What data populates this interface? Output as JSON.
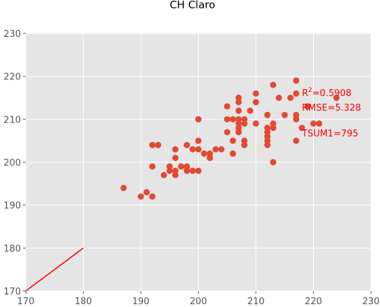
{
  "chart_data": {
    "type": "scatter",
    "title": "CH Claro",
    "xlabel": "",
    "ylabel": "",
    "xlim": [
      170,
      230
    ],
    "ylim": [
      170,
      230
    ],
    "grid": true,
    "xticks": [
      170,
      180,
      190,
      200,
      210,
      220,
      230
    ],
    "yticks": [
      170,
      180,
      190,
      200,
      210,
      220,
      230
    ],
    "colors": {
      "background": "#e5e5e5",
      "grid": "#ffffff",
      "points": "#e24a33",
      "line": "#ff0000",
      "annotation": "#ff0000"
    },
    "series": [
      {
        "points": [
          [
            187,
            194
          ],
          [
            190,
            192
          ],
          [
            191,
            193
          ],
          [
            192,
            192
          ],
          [
            192,
            199
          ],
          [
            192,
            204
          ],
          [
            193,
            204
          ],
          [
            194,
            197
          ],
          [
            195,
            198
          ],
          [
            195,
            199
          ],
          [
            196,
            197
          ],
          [
            196,
            198
          ],
          [
            196,
            201
          ],
          [
            196,
            203
          ],
          [
            197,
            199
          ],
          [
            198,
            198
          ],
          [
            198,
            199
          ],
          [
            198,
            204
          ],
          [
            199,
            198
          ],
          [
            199,
            203
          ],
          [
            200,
            198
          ],
          [
            200,
            203
          ],
          [
            200,
            205
          ],
          [
            200,
            210
          ],
          [
            201,
            202
          ],
          [
            202,
            201
          ],
          [
            202,
            202
          ],
          [
            203,
            203
          ],
          [
            204,
            203
          ],
          [
            205,
            207
          ],
          [
            205,
            210
          ],
          [
            205,
            213
          ],
          [
            206,
            202
          ],
          [
            206,
            205
          ],
          [
            206,
            210
          ],
          [
            207,
            207
          ],
          [
            207,
            208
          ],
          [
            207,
            209
          ],
          [
            207,
            210
          ],
          [
            207,
            212
          ],
          [
            207,
            214
          ],
          [
            207,
            215
          ],
          [
            208,
            204
          ],
          [
            208,
            205
          ],
          [
            208,
            209
          ],
          [
            208,
            210
          ],
          [
            209,
            212
          ],
          [
            210,
            209
          ],
          [
            210,
            214
          ],
          [
            210,
            216
          ],
          [
            212,
            204
          ],
          [
            212,
            205
          ],
          [
            212,
            206
          ],
          [
            212,
            207
          ],
          [
            212,
            208
          ],
          [
            212,
            211
          ],
          [
            213,
            200
          ],
          [
            213,
            208
          ],
          [
            213,
            209
          ],
          [
            213,
            218
          ],
          [
            214,
            215
          ],
          [
            215,
            211
          ],
          [
            216,
            215
          ],
          [
            217,
            205
          ],
          [
            217,
            210
          ],
          [
            217,
            211
          ],
          [
            217,
            216
          ],
          [
            217,
            219
          ],
          [
            218,
            208
          ],
          [
            219,
            213
          ],
          [
            220,
            209
          ],
          [
            221,
            209
          ],
          [
            224,
            215
          ]
        ]
      }
    ],
    "reference_line": [
      [
        170,
        170
      ],
      [
        180,
        180
      ]
    ],
    "annotations": [
      {
        "base": "R",
        "sup": "2",
        "rest": "=0.5908"
      },
      {
        "text": "RMSE=5.328"
      },
      {
        "text": "TSUM1=795"
      }
    ]
  }
}
